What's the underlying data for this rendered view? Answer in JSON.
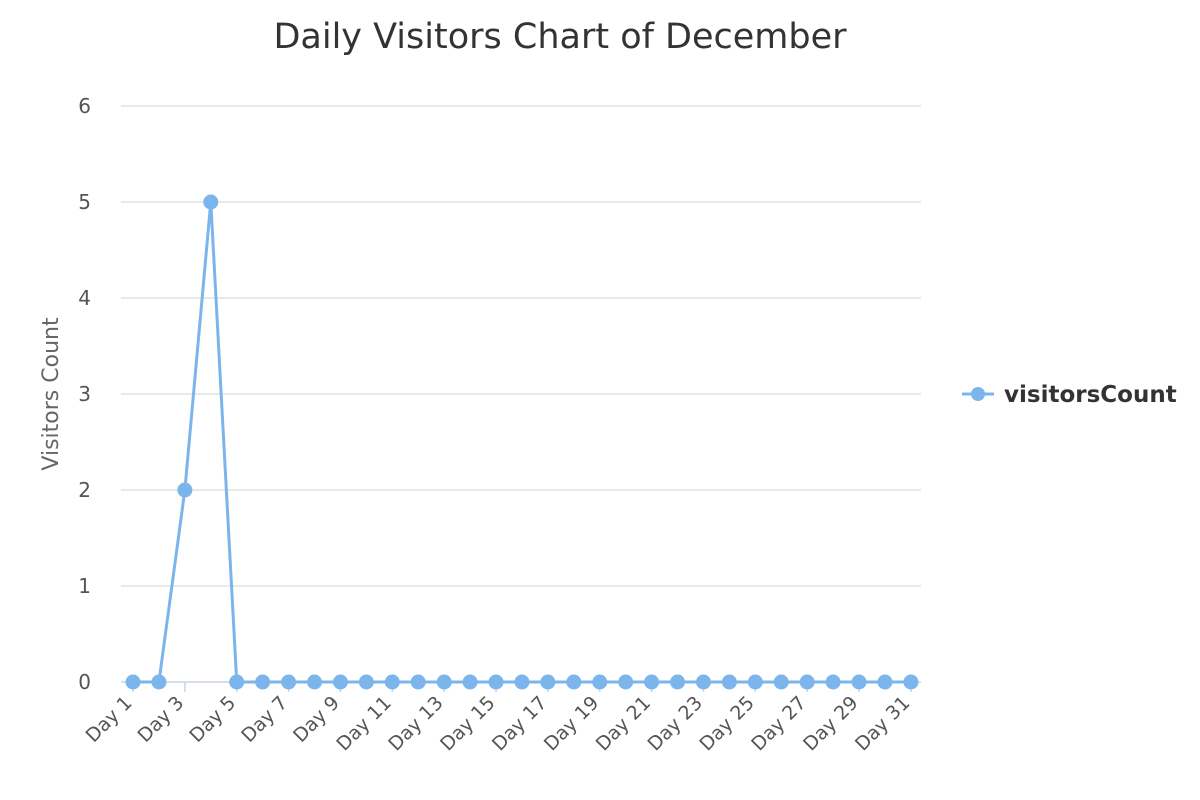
{
  "chart_data": {
    "type": "line",
    "title": "Daily Visitors Chart of December",
    "xlabel": "",
    "ylabel": "Visitors Count",
    "categories": [
      "Day 1",
      "Day 2",
      "Day 3",
      "Day 4",
      "Day 5",
      "Day 6",
      "Day 7",
      "Day 8",
      "Day 9",
      "Day 10",
      "Day 11",
      "Day 12",
      "Day 13",
      "Day 14",
      "Day 15",
      "Day 16",
      "Day 17",
      "Day 18",
      "Day 19",
      "Day 20",
      "Day 21",
      "Day 22",
      "Day 23",
      "Day 24",
      "Day 25",
      "Day 26",
      "Day 27",
      "Day 28",
      "Day 29",
      "Day 30",
      "Day 31"
    ],
    "x_tick_labels": [
      "Day 1",
      "Day 3",
      "Day 5",
      "Day 7",
      "Day 9",
      "Day 11",
      "Day 13",
      "Day 15",
      "Day 17",
      "Day 19",
      "Day 21",
      "Day 23",
      "Day 25",
      "Day 27",
      "Day 29",
      "Day 31"
    ],
    "y_ticks": [
      0,
      1,
      2,
      3,
      4,
      5,
      6
    ],
    "ylim": [
      0,
      6
    ],
    "grid": true,
    "legend_position": "right",
    "series": [
      {
        "name": "visitorsCount",
        "color": "#7cb5ec",
        "values": [
          0,
          0,
          2,
          5,
          0,
          0,
          0,
          0,
          0,
          0,
          0,
          0,
          0,
          0,
          0,
          0,
          0,
          0,
          0,
          0,
          0,
          0,
          0,
          0,
          0,
          0,
          0,
          0,
          0,
          0,
          0
        ]
      }
    ]
  }
}
